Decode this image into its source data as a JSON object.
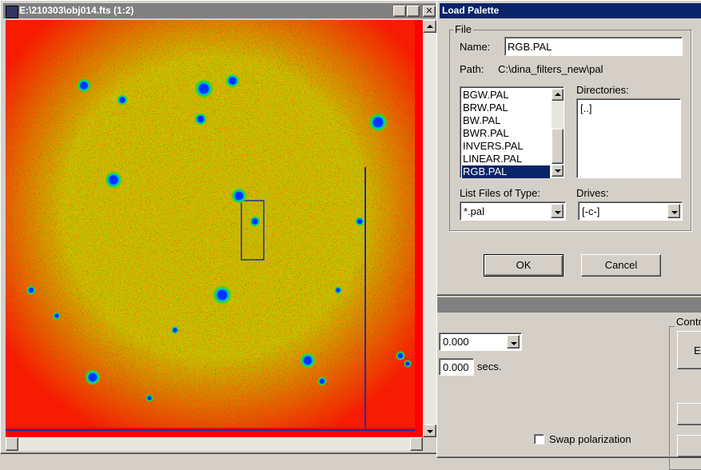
{
  "image_window": {
    "title": "E:\\210303\\obj014.fts (1:2)"
  },
  "dialog": {
    "title": "Load Palette",
    "group": "File",
    "name_label": "Name:",
    "name_value": "RGB.PAL",
    "path_label": "Path:",
    "path_value": "C:\\dina_filters_new\\pal",
    "files": [
      "BGW.PAL",
      "BRW.PAL",
      "BW.PAL",
      "BWR.PAL",
      "INVERS.PAL",
      "LINEAR.PAL",
      "RGB.PAL"
    ],
    "directories_label": "Directories:",
    "directories": [
      "[..]"
    ],
    "type_label": "List Files of Type:",
    "type_value": "*.pal",
    "drives_label": "Drives:",
    "drive_value": "[-c-]",
    "ok": "OK",
    "cancel": "Cancel"
  },
  "back_window": {
    "value1": "0.000",
    "value2": "0.000",
    "unit": "secs.",
    "group": "Contr",
    "button": "E",
    "checkbox": "Swap polarization"
  }
}
